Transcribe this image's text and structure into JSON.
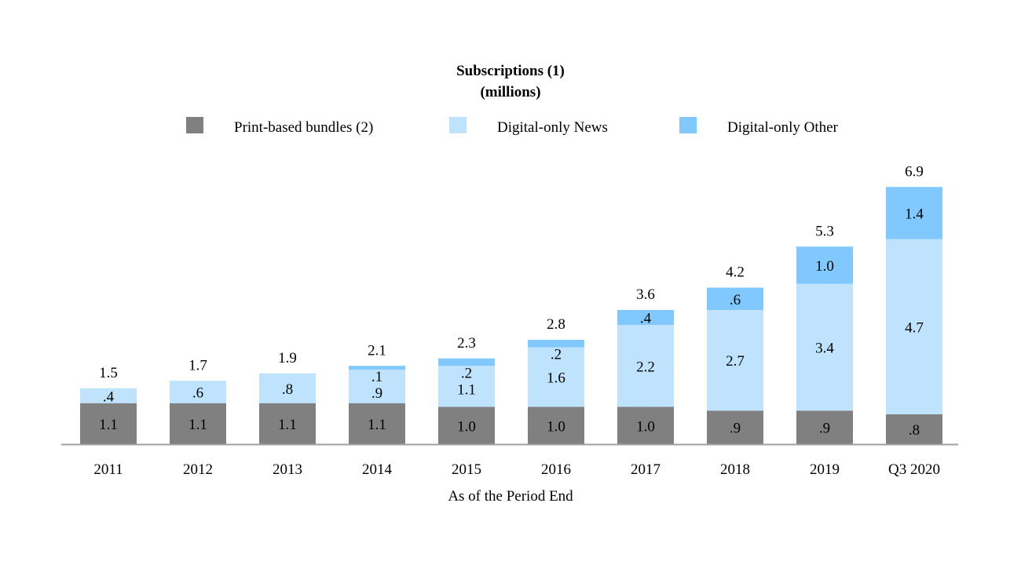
{
  "chart_data": {
    "type": "bar",
    "stacked": true,
    "title": "Subscriptions (1)",
    "subtitle": "(millions)",
    "xlabel": "As of the Period End",
    "ylabel": "",
    "legend_position": "top",
    "grid": false,
    "categories": [
      "2011",
      "2012",
      "2013",
      "2014",
      "2015",
      "2016",
      "2017",
      "2018",
      "2019",
      "Q3 2020"
    ],
    "series": [
      {
        "name": "Print-based bundles (2)",
        "color": "#808080",
        "values": [
          1.1,
          1.1,
          1.1,
          1.1,
          1.0,
          1.0,
          1.0,
          0.9,
          0.9,
          0.8
        ],
        "labels": [
          "1.1",
          "1.1",
          "1.1",
          "1.1",
          "1.0",
          "1.0",
          "1.0",
          ".9",
          ".9",
          ".8"
        ]
      },
      {
        "name": "Digital-only News",
        "color": "#bfe3fd",
        "values": [
          0.4,
          0.6,
          0.8,
          0.9,
          1.1,
          1.6,
          2.2,
          2.7,
          3.4,
          4.7
        ],
        "labels": [
          ".4",
          ".6",
          ".8",
          ".9",
          "1.1",
          "1.6",
          "2.2",
          "2.7",
          "3.4",
          "4.7"
        ]
      },
      {
        "name": "Digital-only Other",
        "color": "#80c8fd",
        "values": [
          0,
          0,
          0,
          0.1,
          0.2,
          0.2,
          0.4,
          0.6,
          1.0,
          1.4
        ],
        "labels": [
          "",
          "",
          "",
          ".1",
          ".2",
          ".2",
          ".4",
          ".6",
          "1.0",
          "1.4"
        ]
      }
    ],
    "totals": [
      "1.5",
      "1.7",
      "1.9",
      "2.1",
      "2.3",
      "2.8",
      "3.6",
      "4.2",
      "5.3",
      "6.9"
    ]
  }
}
